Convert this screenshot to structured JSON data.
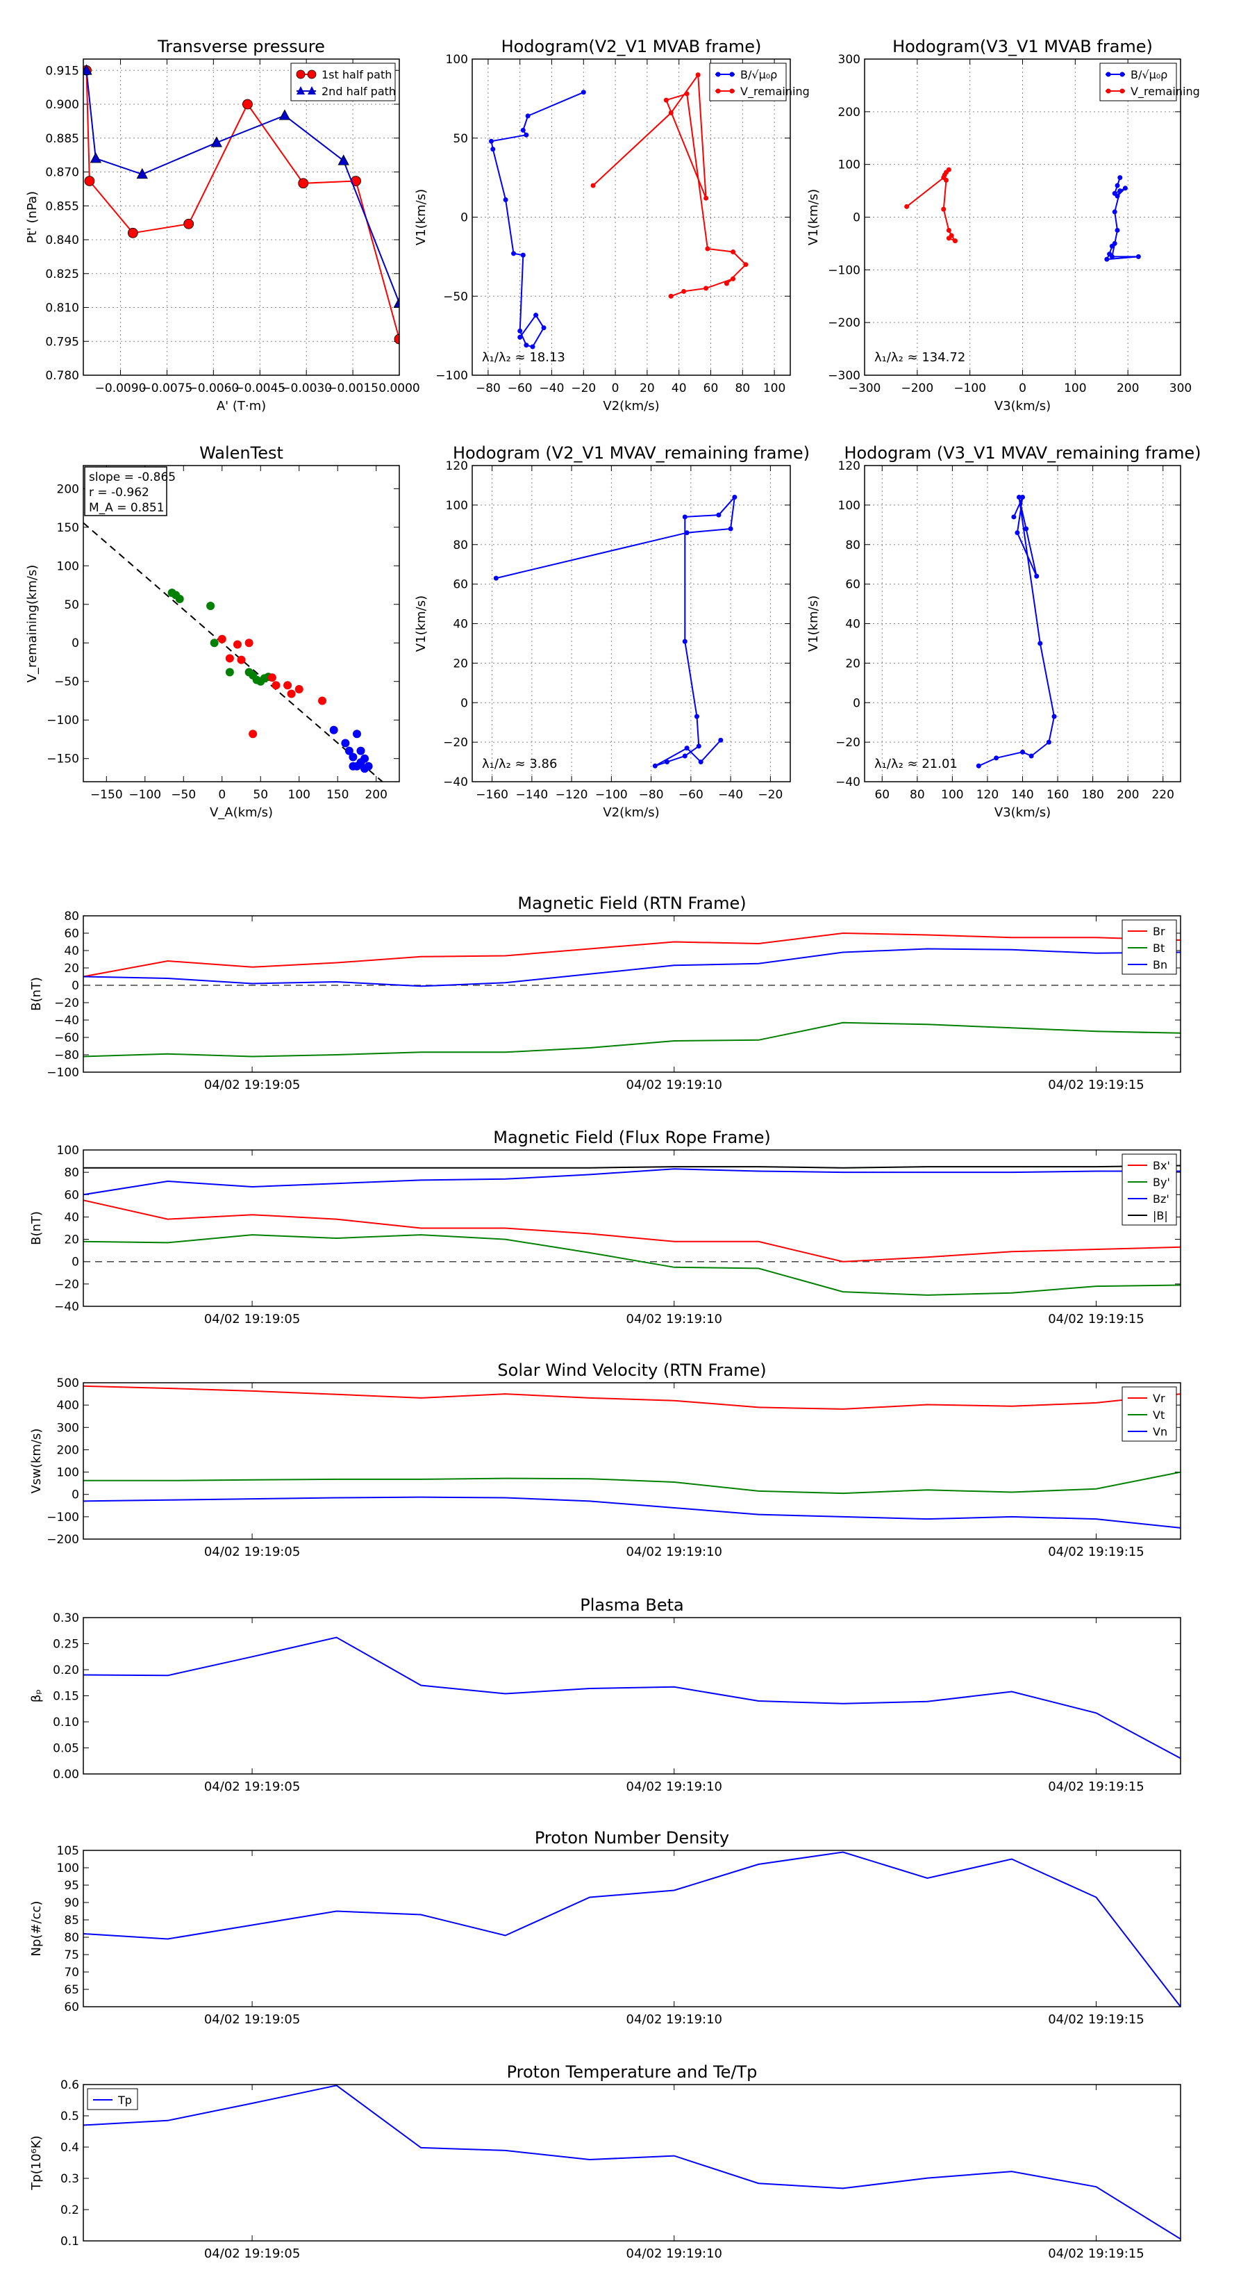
{
  "chart_data": [
    {
      "id": "pt",
      "type": "line",
      "title": "Transverse pressure",
      "xlabel": "A' (T·m)",
      "ylabel": "Pt' (nPa)",
      "xlim": [
        -0.0102,
        0.0
      ],
      "ylim": [
        0.78,
        0.92
      ],
      "xticks": [
        -0.009,
        -0.0075,
        -0.006,
        -0.0045,
        -0.003,
        -0.0015,
        0.0
      ],
      "xticklabels": [
        "−0.0090",
        "−0.0075",
        "−0.0060",
        "−0.0045",
        "−0.0030",
        "−0.0015",
        "0.0000"
      ],
      "yticks": [
        0.78,
        0.795,
        0.81,
        0.825,
        0.84,
        0.855,
        0.87,
        0.885,
        0.9,
        0.915
      ],
      "yticklabels": [
        "0.780",
        "0.795",
        "0.810",
        "0.825",
        "0.840",
        "0.855",
        "0.870",
        "0.885",
        "0.900",
        "0.915"
      ],
      "grid": true,
      "legend": "top-right",
      "series": [
        {
          "name": "1st half path",
          "color": "#ff0000",
          "marker": "circle",
          "x": [
            -0.0101,
            -0.01,
            -0.0086,
            -0.0068,
            -0.0049,
            -0.0031,
            -0.0014,
            0.0
          ],
          "y": [
            0.915,
            0.866,
            0.843,
            0.847,
            0.9,
            0.865,
            0.866,
            0.796
          ]
        },
        {
          "name": "2nd half path",
          "color": "#0000cc",
          "marker": "triangle",
          "x": [
            -0.0101,
            -0.0098,
            -0.0083,
            -0.0059,
            -0.0037,
            -0.0018,
            0.0
          ],
          "y": [
            0.915,
            0.876,
            0.869,
            0.883,
            0.895,
            0.875,
            0.812
          ]
        }
      ]
    },
    {
      "id": "h2",
      "type": "line",
      "title": "Hodogram(V2_V1 MVAB frame)",
      "xlabel": "V2(km/s)",
      "ylabel": "V1(km/s)",
      "xlim": [
        -90,
        110
      ],
      "ylim": [
        -100,
        100
      ],
      "xticks": [
        -80,
        -60,
        -40,
        -20,
        0,
        20,
        40,
        60,
        80,
        100
      ],
      "yticks": [
        -100,
        -50,
        0,
        50,
        100
      ],
      "grid": true,
      "legend": "top-right",
      "annotation": "λ₁/λ₂ ≈ 18.13",
      "series": [
        {
          "name": "B/√μ₀ρ",
          "color": "#0000ff",
          "marker": "dot",
          "x": [
            -20,
            -55,
            -58,
            -56,
            -78,
            -77,
            -69,
            -64,
            -58,
            -60,
            -56,
            -52,
            -45,
            -50,
            -60
          ],
          "y": [
            79,
            64,
            55,
            52,
            48,
            43,
            11,
            -23,
            -24,
            -72,
            -81,
            -82,
            -70,
            -62,
            -76
          ]
        },
        {
          "name": "V_remaining",
          "color": "#ff0000",
          "marker": "dot",
          "x": [
            -14,
            35,
            52,
            57,
            32,
            45,
            58,
            74,
            82,
            70,
            74,
            57,
            43,
            35
          ],
          "y": [
            20,
            66,
            90,
            12,
            74,
            78,
            -20,
            -22,
            -30,
            -42,
            -39,
            -45,
            -47,
            -50
          ]
        }
      ]
    },
    {
      "id": "h3",
      "type": "line",
      "title": "Hodogram(V3_V1 MVAB frame)",
      "xlabel": "V3(km/s)",
      "ylabel": "V1(km/s)",
      "xlim": [
        -300,
        300
      ],
      "ylim": [
        -300,
        300
      ],
      "xticks": [
        -300,
        -200,
        -100,
        0,
        100,
        200,
        300
      ],
      "yticks": [
        -300,
        -200,
        -100,
        0,
        100,
        200,
        300
      ],
      "grid": true,
      "legend": "top-right",
      "annotation": "λ₁/λ₂ ≈ 134.72",
      "series": [
        {
          "name": "B/√μ₀ρ",
          "color": "#0000ff",
          "marker": "dot",
          "x": [
            180,
            185,
            175,
            195,
            180,
            185,
            175,
            180,
            175,
            170,
            220,
            160,
            165,
            170
          ],
          "y": [
            60,
            75,
            45,
            55,
            40,
            50,
            10,
            -25,
            -50,
            -75,
            -75,
            -80,
            -70,
            -55
          ]
        },
        {
          "name": "V_remaining",
          "color": "#ff0000",
          "marker": "dot",
          "x": [
            -220,
            -150,
            -145,
            -140,
            -148,
            -145,
            -150,
            -140,
            -135,
            -128,
            -140
          ],
          "y": [
            20,
            75,
            85,
            90,
            80,
            70,
            15,
            -25,
            -35,
            -45,
            -40
          ]
        }
      ]
    },
    {
      "id": "walen",
      "type": "scatter",
      "title": "WalenTest",
      "xlabel": "V_A(km/s)",
      "ylabel": "V_remaining(km/s)",
      "xlim": [
        -180,
        230
      ],
      "ylim": [
        -180,
        230
      ],
      "xticks": [
        -150,
        -100,
        -50,
        0,
        50,
        100,
        150,
        200
      ],
      "yticks": [
        -150,
        -100,
        -50,
        0,
        50,
        100,
        150,
        200
      ],
      "grid": false,
      "stats": [
        "slope = -0.865",
        "r = -0.962",
        "M_A = 0.851"
      ],
      "fit_line": {
        "slope": -0.865,
        "intercept": 0
      },
      "series": [
        {
          "name": "green",
          "color": "#008000",
          "x": [
            -65,
            -60,
            -55,
            -15,
            -10,
            10,
            35,
            40,
            45,
            50,
            55,
            60
          ],
          "y": [
            65,
            62,
            57,
            48,
            0,
            -38,
            -38,
            -42,
            -48,
            -50,
            -46,
            -44
          ]
        },
        {
          "name": "red",
          "color": "#ff0000",
          "x": [
            0,
            10,
            20,
            25,
            35,
            40,
            65,
            70,
            85,
            90,
            100,
            130
          ],
          "y": [
            5,
            -20,
            -2,
            -22,
            0,
            -118,
            -45,
            -55,
            -55,
            -66,
            -60,
            -75
          ]
        },
        {
          "name": "blue",
          "color": "#0000ff",
          "x": [
            145,
            160,
            165,
            170,
            170,
            175,
            175,
            180,
            180,
            185,
            185,
            190
          ],
          "y": [
            -113,
            -130,
            -140,
            -148,
            -160,
            -118,
            -160,
            -155,
            -140,
            -163,
            -150,
            -160
          ]
        }
      ]
    },
    {
      "id": "h2r",
      "type": "line",
      "title": "Hodogram (V2_V1 MVAV_remaining frame)",
      "xlabel": "V2(km/s)",
      "ylabel": "V1(km/s)",
      "xlim": [
        -170,
        -10
      ],
      "ylim": [
        -40,
        120
      ],
      "xticks": [
        -160,
        -140,
        -120,
        -100,
        -80,
        -60,
        -40,
        -20
      ],
      "yticks": [
        -40,
        -20,
        0,
        20,
        40,
        60,
        80,
        100,
        120
      ],
      "grid": true,
      "annotation": "λ₁/λ₂ ≈ 3.86",
      "series": [
        {
          "name": "hodogram",
          "color": "#0000ff",
          "marker": "dot",
          "x": [
            -158,
            -62,
            -40,
            -38,
            -46,
            -63,
            -63,
            -57,
            -56,
            -63,
            -72,
            -78,
            -62,
            -55,
            -45
          ],
          "y": [
            63,
            86,
            88,
            104,
            95,
            94,
            31,
            -7,
            -22,
            -27,
            -30,
            -32,
            -23,
            -30,
            -19
          ]
        }
      ]
    },
    {
      "id": "h3r",
      "type": "line",
      "title": "Hodogram (V3_V1 MVAV_remaining frame)",
      "xlabel": "V3(km/s)",
      "ylabel": "V1(km/s)",
      "xlim": [
        50,
        230
      ],
      "ylim": [
        -40,
        120
      ],
      "xticks": [
        60,
        80,
        100,
        120,
        140,
        160,
        180,
        200,
        220
      ],
      "yticks": [
        -40,
        -20,
        0,
        20,
        40,
        60,
        80,
        100,
        120
      ],
      "grid": true,
      "annotation": "λ₁/λ₂ ≈ 21.01",
      "series": [
        {
          "name": "hodogram",
          "color": "#0000ff",
          "marker": "dot",
          "x": [
            135,
            140,
            137,
            148,
            142,
            138,
            150,
            158,
            155,
            145,
            140,
            125,
            115
          ],
          "y": [
            94,
            104,
            86,
            64,
            88,
            104,
            30,
            -7,
            -20,
            -27,
            -25,
            -28,
            -32
          ]
        }
      ]
    },
    {
      "id": "brtn",
      "type": "line",
      "title": "Magnetic Field (RTN Frame)",
      "ylabel": "B(nT)",
      "ylim": [
        -100,
        80
      ],
      "yticks": [
        -100,
        -80,
        -60,
        -40,
        -20,
        0,
        20,
        40,
        60,
        80
      ],
      "x": [
        0,
        1,
        2,
        3,
        4,
        5,
        6,
        7,
        8,
        9,
        10,
        11,
        12,
        13
      ],
      "xlim": [
        0,
        13
      ],
      "xtick_positions": [
        2,
        7,
        12
      ],
      "xticklabels": [
        "04/02 19:19:05",
        "04/02 19:19:10",
        "04/02 19:19:15"
      ],
      "grid": false,
      "zero_line": true,
      "legend": "top-right",
      "series": [
        {
          "name": "Br",
          "color": "#ff0000",
          "values": [
            10,
            28,
            21,
            26,
            33,
            34,
            42,
            50,
            48,
            60,
            58,
            55,
            55,
            52
          ]
        },
        {
          "name": "Bt",
          "color": "#008000",
          "values": [
            -82,
            -79,
            -82,
            -80,
            -77,
            -77,
            -72,
            -64,
            -63,
            -43,
            -45,
            -49,
            -53,
            -55
          ]
        },
        {
          "name": "Bn",
          "color": "#0000ff",
          "values": [
            10,
            8,
            2,
            4,
            -1,
            3,
            13,
            23,
            25,
            38,
            42,
            41,
            37,
            38
          ]
        }
      ]
    },
    {
      "id": "bfr",
      "type": "line",
      "title": "Magnetic Field (Flux Rope Frame)",
      "ylabel": "B(nT)",
      "ylim": [
        -40,
        100
      ],
      "yticks": [
        -40,
        -20,
        0,
        20,
        40,
        60,
        80,
        100
      ],
      "x": [
        0,
        1,
        2,
        3,
        4,
        5,
        6,
        7,
        8,
        9,
        10,
        11,
        12,
        13
      ],
      "xlim": [
        0,
        13
      ],
      "xtick_positions": [
        2,
        7,
        12
      ],
      "xticklabels": [
        "04/02 19:19:05",
        "04/02 19:19:10",
        "04/02 19:19:15"
      ],
      "grid": false,
      "zero_line": true,
      "legend": "top-right",
      "series": [
        {
          "name": "Bx'",
          "color": "#ff0000",
          "values": [
            55,
            38,
            42,
            38,
            30,
            30,
            25,
            18,
            18,
            0,
            4,
            9,
            11,
            13
          ]
        },
        {
          "name": "By'",
          "color": "#008000",
          "values": [
            18,
            17,
            24,
            21,
            24,
            20,
            8,
            -5,
            -6,
            -27,
            -30,
            -28,
            -22,
            -21
          ]
        },
        {
          "name": "Bz'",
          "color": "#0000ff",
          "values": [
            60,
            72,
            67,
            70,
            73,
            74,
            78,
            83,
            81,
            80,
            80,
            80,
            81,
            81
          ]
        },
        {
          "name": "|B|",
          "color": "#000000",
          "values": [
            84,
            84,
            84,
            84,
            84,
            84,
            84,
            85,
            85,
            84,
            85,
            85,
            85,
            86
          ]
        }
      ]
    },
    {
      "id": "vsw",
      "type": "line",
      "title": "Solar Wind Velocity (RTN Frame)",
      "ylabel": "Vsw(km/s)",
      "ylim": [
        -200,
        500
      ],
      "yticks": [
        -200,
        -100,
        0,
        100,
        200,
        300,
        400,
        500
      ],
      "x": [
        0,
        1,
        2,
        3,
        4,
        5,
        6,
        7,
        8,
        9,
        10,
        11,
        12,
        13
      ],
      "xlim": [
        0,
        13
      ],
      "xtick_positions": [
        2,
        7,
        12
      ],
      "xticklabels": [
        "04/02 19:19:05",
        "04/02 19:19:10",
        "04/02 19:19:15"
      ],
      "grid": false,
      "legend": "top-right",
      "series": [
        {
          "name": "Vr",
          "color": "#ff0000",
          "values": [
            485,
            475,
            463,
            448,
            432,
            450,
            432,
            420,
            390,
            382,
            402,
            395,
            410,
            450
          ]
        },
        {
          "name": "Vt",
          "color": "#008000",
          "values": [
            62,
            62,
            65,
            68,
            68,
            72,
            70,
            55,
            15,
            5,
            20,
            10,
            25,
            100
          ]
        },
        {
          "name": "Vn",
          "color": "#0000ff",
          "values": [
            -30,
            -25,
            -20,
            -15,
            -12,
            -15,
            -30,
            -60,
            -90,
            -100,
            -110,
            -100,
            -110,
            -150
          ]
        }
      ]
    },
    {
      "id": "beta",
      "type": "line",
      "title": "Plasma Beta",
      "ylabel": "βₚ",
      "ylim": [
        0.0,
        0.3
      ],
      "yticks": [
        0.0,
        0.05,
        0.1,
        0.15,
        0.2,
        0.25,
        0.3
      ],
      "yticklabels": [
        "0.00",
        "0.05",
        "0.10",
        "0.15",
        "0.20",
        "0.25",
        "0.30"
      ],
      "x": [
        0,
        1,
        2,
        3,
        4,
        5,
        6,
        7,
        8,
        9,
        10,
        11,
        12,
        13
      ],
      "xlim": [
        0,
        13
      ],
      "xtick_positions": [
        2,
        7,
        12
      ],
      "xticklabels": [
        "04/02 19:19:05",
        "04/02 19:19:10",
        "04/02 19:19:15"
      ],
      "grid": false,
      "series": [
        {
          "name": "beta",
          "color": "#0000ff",
          "values": [
            0.19,
            0.189,
            0.225,
            0.262,
            0.17,
            0.154,
            0.164,
            0.167,
            0.14,
            0.135,
            0.139,
            0.158,
            0.117,
            0.03
          ]
        }
      ]
    },
    {
      "id": "np",
      "type": "line",
      "title": "Proton Number Density",
      "ylabel": "Np(#/cc)",
      "ylim": [
        60,
        105
      ],
      "yticks": [
        60,
        65,
        70,
        75,
        80,
        85,
        90,
        95,
        100,
        105
      ],
      "x": [
        0,
        1,
        2,
        3,
        4,
        5,
        6,
        7,
        8,
        9,
        10,
        11,
        12,
        13
      ],
      "xlim": [
        0,
        13
      ],
      "xtick_positions": [
        2,
        7,
        12
      ],
      "xticklabels": [
        "04/02 19:19:05",
        "04/02 19:19:10",
        "04/02 19:19:15"
      ],
      "grid": false,
      "series": [
        {
          "name": "Np",
          "color": "#0000ff",
          "values": [
            81,
            79.5,
            83.5,
            87.5,
            86.5,
            80.5,
            91.5,
            93.5,
            101,
            104.5,
            97,
            102.5,
            91.5,
            60
          ]
        }
      ]
    },
    {
      "id": "tp",
      "type": "line",
      "title": "Proton Temperature and Te/Tp",
      "ylabel": "Tp(10⁶K)",
      "ylim": [
        0.1,
        0.6
      ],
      "yticks": [
        0.1,
        0.2,
        0.3,
        0.4,
        0.5,
        0.6
      ],
      "x": [
        0,
        1,
        2,
        3,
        4,
        5,
        6,
        7,
        8,
        9,
        10,
        11,
        12,
        13
      ],
      "xlim": [
        0,
        13
      ],
      "xtick_positions": [
        2,
        7,
        12
      ],
      "xticklabels": [
        "04/02 19:19:05",
        "04/02 19:19:10",
        "04/02 19:19:15"
      ],
      "grid": false,
      "legend": "top-left",
      "series": [
        {
          "name": "Tp",
          "color": "#0000ff",
          "values": [
            0.47,
            0.485,
            0.54,
            0.597,
            0.398,
            0.389,
            0.36,
            0.372,
            0.284,
            0.268,
            0.301,
            0.322,
            0.273,
            0.106
          ]
        }
      ]
    }
  ]
}
